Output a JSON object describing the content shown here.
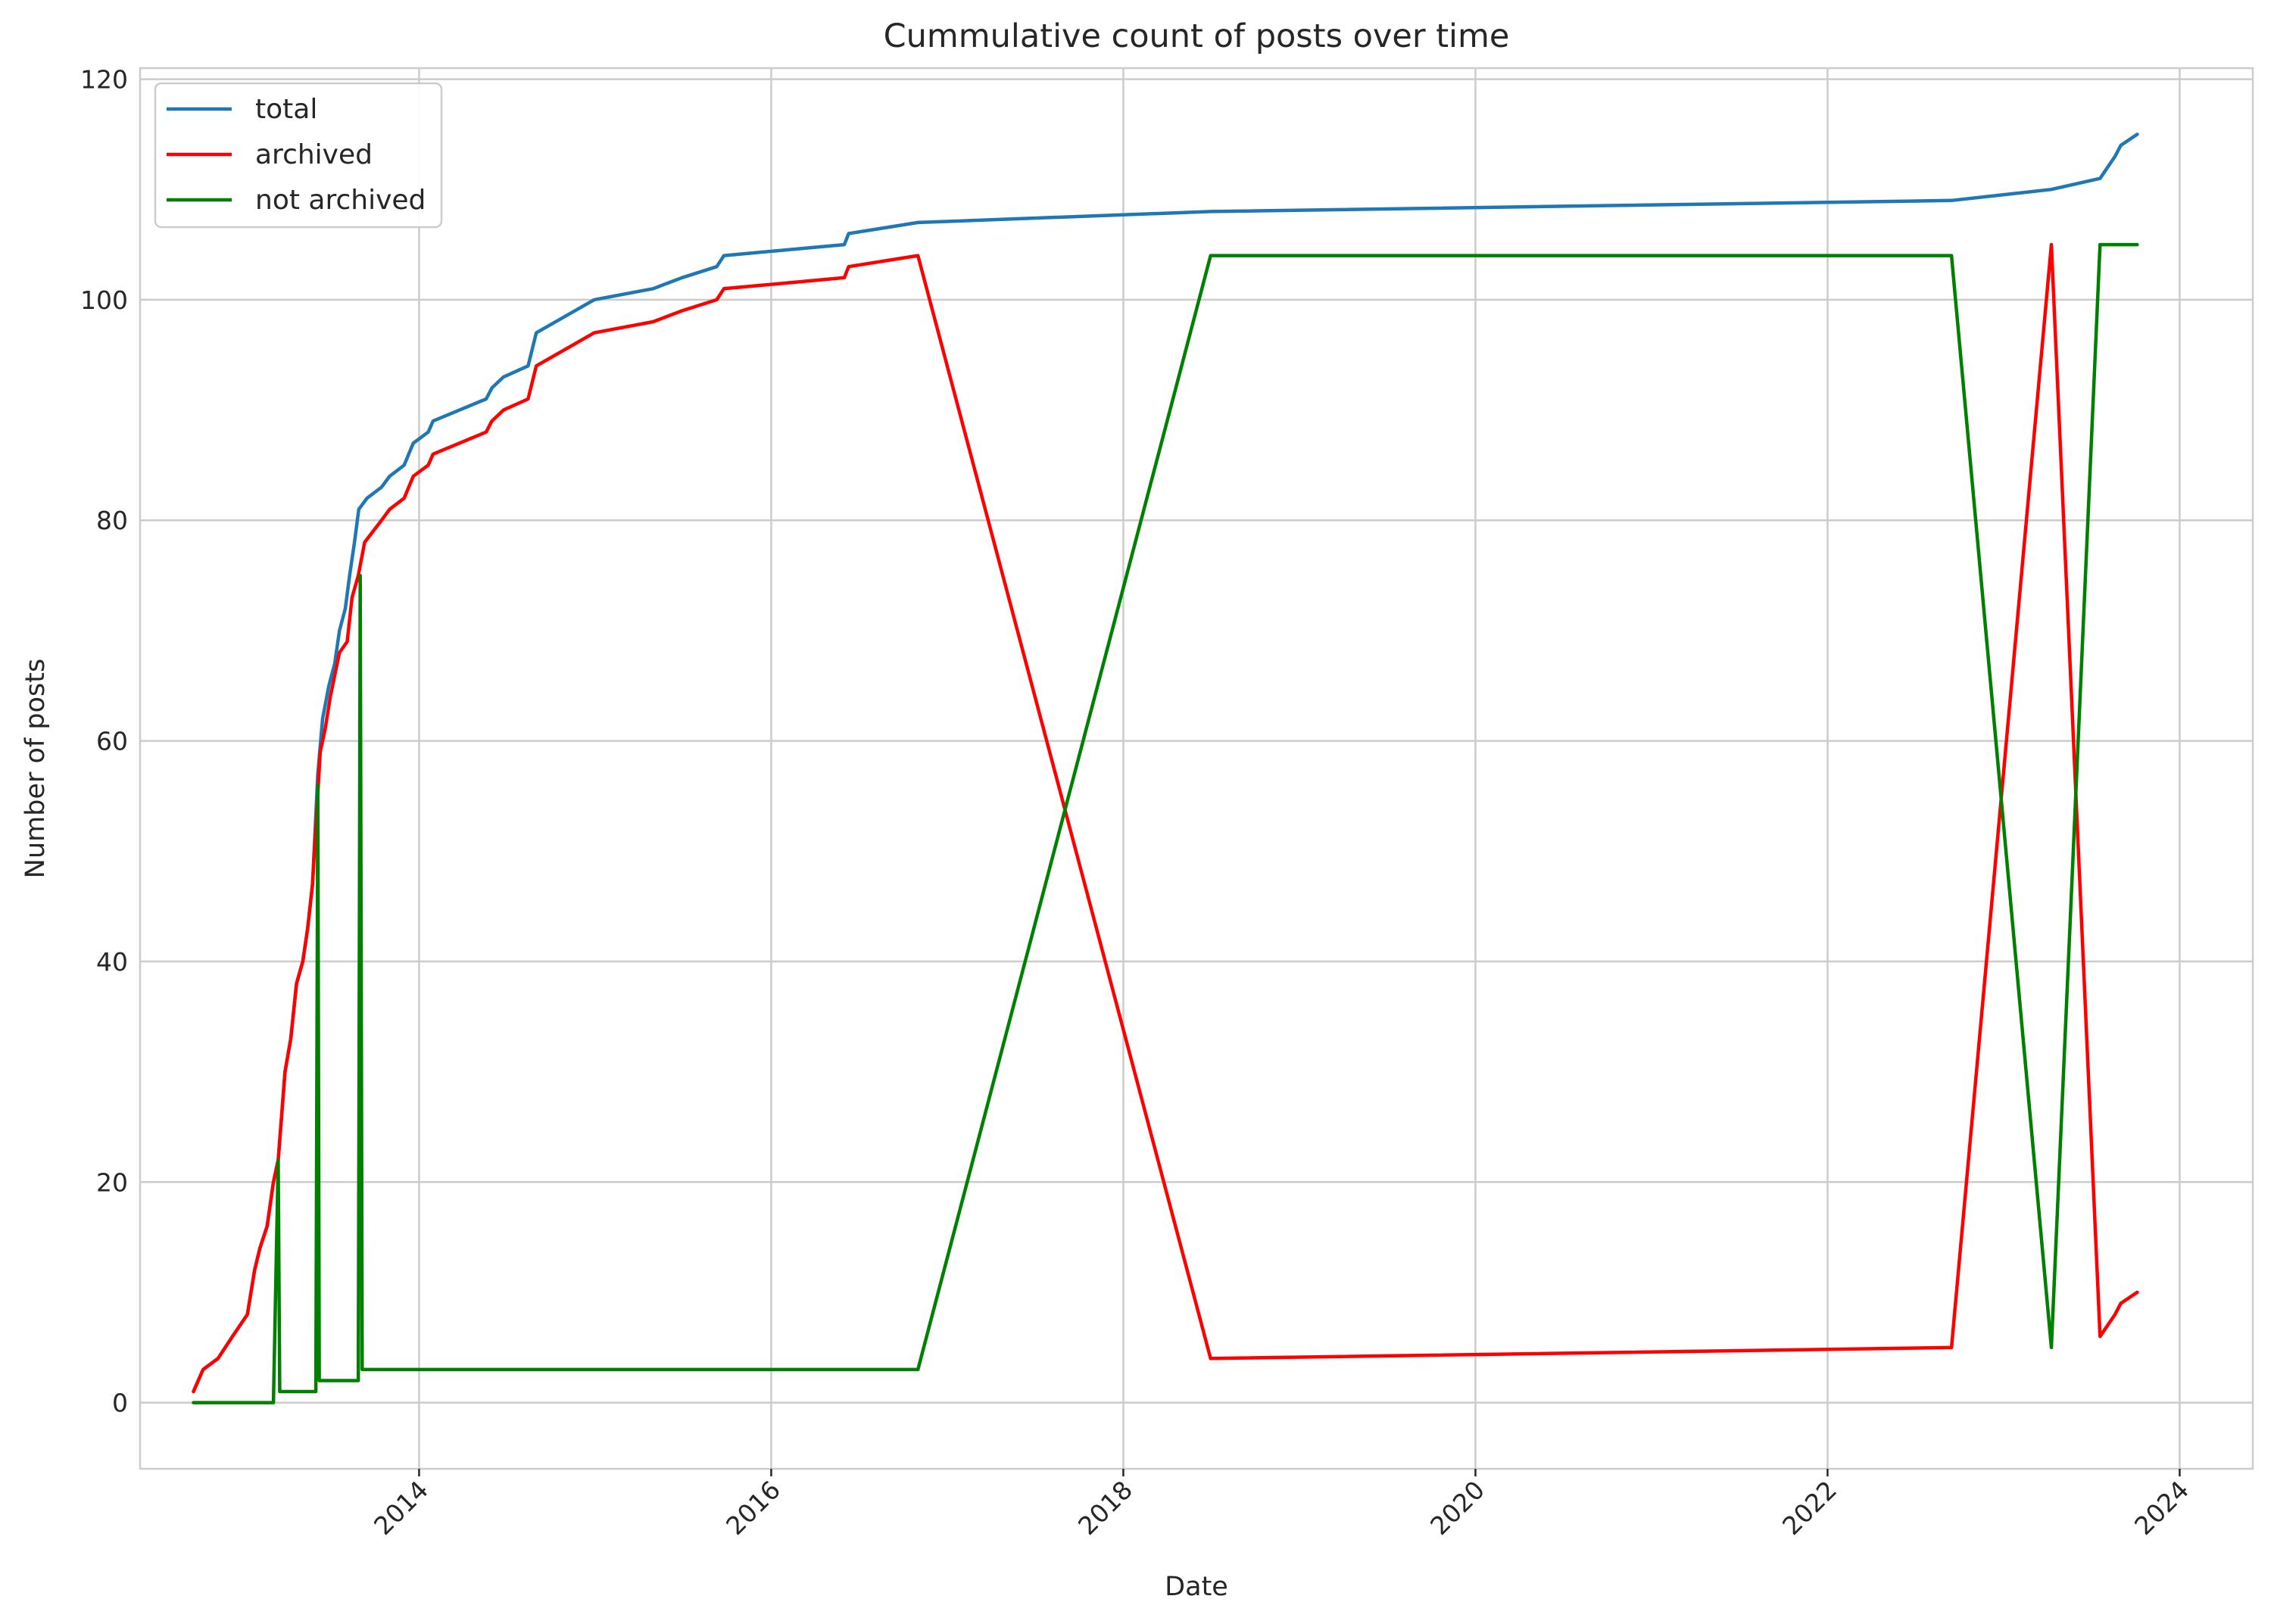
{
  "chart_data": {
    "type": "line",
    "title": "Cummulative count of posts over time",
    "xlabel": "Date",
    "ylabel": "Number of posts",
    "xlim": [
      "2012-06-01",
      "2024-06-01"
    ],
    "ylim": [
      -6,
      121
    ],
    "x_ticks": [
      "2014",
      "2016",
      "2018",
      "2020",
      "2022",
      "2024"
    ],
    "y_ticks": [
      0,
      20,
      40,
      60,
      80,
      100,
      120
    ],
    "grid": true,
    "legend_position": "top-left",
    "series": [
      {
        "name": "total",
        "color": "#1f77b4",
        "points": [
          [
            "2012-09-20",
            1
          ],
          [
            "2012-10-10",
            3
          ],
          [
            "2012-11-10",
            4
          ],
          [
            "2012-12-10",
            6
          ],
          [
            "2013-01-10",
            8
          ],
          [
            "2013-01-25",
            12
          ],
          [
            "2013-02-05",
            14
          ],
          [
            "2013-02-20",
            16
          ],
          [
            "2013-03-05",
            20
          ],
          [
            "2013-03-15",
            22
          ],
          [
            "2013-03-22",
            26
          ],
          [
            "2013-03-29",
            30
          ],
          [
            "2013-04-10",
            33
          ],
          [
            "2013-04-22",
            38
          ],
          [
            "2013-05-05",
            40
          ],
          [
            "2013-05-15",
            43
          ],
          [
            "2013-05-25",
            47
          ],
          [
            "2013-06-05",
            57
          ],
          [
            "2013-06-15",
            62
          ],
          [
            "2013-06-28",
            65
          ],
          [
            "2013-07-10",
            67
          ],
          [
            "2013-07-20",
            70
          ],
          [
            "2013-08-01",
            72
          ],
          [
            "2013-08-10",
            75
          ],
          [
            "2013-08-20",
            78
          ],
          [
            "2013-08-29",
            81
          ],
          [
            "2013-09-15",
            82
          ],
          [
            "2013-10-15",
            83
          ],
          [
            "2013-11-01",
            84
          ],
          [
            "2013-12-01",
            85
          ],
          [
            "2013-12-20",
            87
          ],
          [
            "2014-01-20",
            88
          ],
          [
            "2014-01-30",
            89
          ],
          [
            "2014-05-20",
            91
          ],
          [
            "2014-06-01",
            92
          ],
          [
            "2014-06-25",
            93
          ],
          [
            "2014-08-15",
            94
          ],
          [
            "2014-09-01",
            97
          ],
          [
            "2014-12-30",
            100
          ],
          [
            "2015-05-01",
            101
          ],
          [
            "2015-06-30",
            102
          ],
          [
            "2015-09-10",
            103
          ],
          [
            "2015-09-25",
            104
          ],
          [
            "2016-06-01",
            105
          ],
          [
            "2016-06-10",
            106
          ],
          [
            "2016-11-01",
            107
          ],
          [
            "2018-07-01",
            108
          ],
          [
            "2022-09-15",
            109
          ],
          [
            "2023-04-10",
            110
          ],
          [
            "2023-07-20",
            111
          ],
          [
            "2023-08-20",
            113
          ],
          [
            "2023-09-01",
            114
          ],
          [
            "2023-10-05",
            115
          ]
        ]
      },
      {
        "name": "archived",
        "color": "#ff0000",
        "points": [
          [
            "2012-09-20",
            1
          ],
          [
            "2012-10-10",
            3
          ],
          [
            "2012-11-10",
            4
          ],
          [
            "2012-12-10",
            6
          ],
          [
            "2013-01-10",
            8
          ],
          [
            "2013-01-25",
            12
          ],
          [
            "2013-02-05",
            14
          ],
          [
            "2013-02-20",
            16
          ],
          [
            "2013-03-05",
            20
          ],
          [
            "2013-03-15",
            22
          ],
          [
            "2013-03-22",
            26
          ],
          [
            "2013-03-29",
            30
          ],
          [
            "2013-04-10",
            33
          ],
          [
            "2013-04-22",
            38
          ],
          [
            "2013-05-05",
            40
          ],
          [
            "2013-05-15",
            43
          ],
          [
            "2013-05-25",
            47
          ],
          [
            "2013-06-10",
            59
          ],
          [
            "2013-06-20",
            61
          ],
          [
            "2013-07-01",
            64
          ],
          [
            "2013-07-20",
            68
          ],
          [
            "2013-08-05",
            69
          ],
          [
            "2013-08-15",
            73
          ],
          [
            "2013-08-28",
            75
          ],
          [
            "2013-09-10",
            78
          ],
          [
            "2013-10-15",
            80
          ],
          [
            "2013-11-01",
            81
          ],
          [
            "2013-12-01",
            82
          ],
          [
            "2013-12-20",
            84
          ],
          [
            "2014-01-20",
            85
          ],
          [
            "2014-01-30",
            86
          ],
          [
            "2014-05-20",
            88
          ],
          [
            "2014-06-01",
            89
          ],
          [
            "2014-06-25",
            90
          ],
          [
            "2014-08-15",
            91
          ],
          [
            "2014-09-01",
            94
          ],
          [
            "2014-12-30",
            97
          ],
          [
            "2015-05-01",
            98
          ],
          [
            "2015-06-30",
            99
          ],
          [
            "2015-09-10",
            100
          ],
          [
            "2015-09-25",
            101
          ],
          [
            "2016-06-01",
            102
          ],
          [
            "2016-06-10",
            103
          ],
          [
            "2016-11-01",
            104
          ],
          [
            "2018-07-01",
            4
          ],
          [
            "2022-09-15",
            5
          ],
          [
            "2023-04-10",
            105
          ],
          [
            "2023-07-20",
            6
          ],
          [
            "2023-08-20",
            8
          ],
          [
            "2023-09-01",
            9
          ],
          [
            "2023-10-05",
            10
          ]
        ]
      },
      {
        "name": "not archived",
        "color": "#008000",
        "points": [
          [
            "2012-09-20",
            0
          ],
          [
            "2013-03-05",
            0
          ],
          [
            "2013-03-15",
            22
          ],
          [
            "2013-03-18",
            1
          ],
          [
            "2013-06-01",
            1
          ],
          [
            "2013-06-05",
            56
          ],
          [
            "2013-06-08",
            2
          ],
          [
            "2013-08-28",
            2
          ],
          [
            "2013-09-01",
            75
          ],
          [
            "2013-09-05",
            3
          ],
          [
            "2016-11-01",
            3
          ],
          [
            "2018-07-01",
            104
          ],
          [
            "2022-09-15",
            104
          ],
          [
            "2023-04-10",
            5
          ],
          [
            "2023-07-20",
            105
          ],
          [
            "2023-10-05",
            105
          ]
        ]
      }
    ]
  }
}
